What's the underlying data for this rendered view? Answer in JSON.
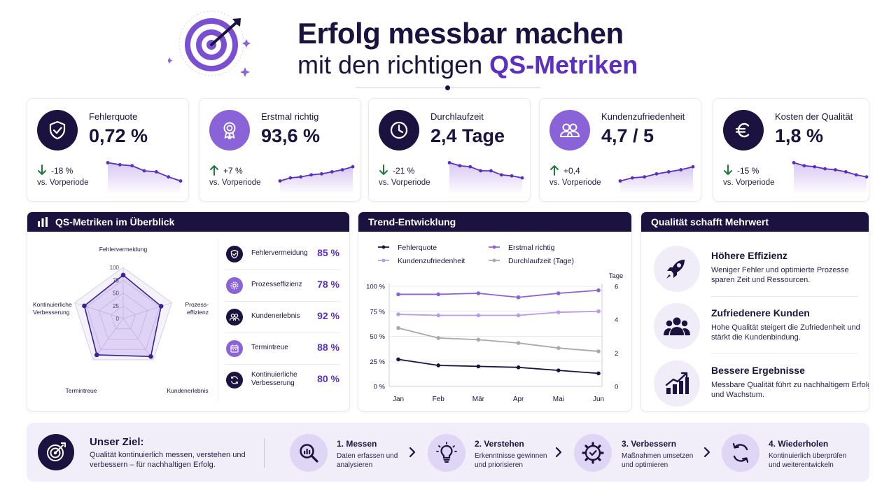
{
  "header": {
    "title": "Erfolg messbar machen",
    "subtitle_prefix": "mit den richtigen",
    "subtitle_highlight": "QS-Metriken"
  },
  "colors": {
    "dark": "#1c1240",
    "accent": "#5b2fc0",
    "accent_light": "#8b63d9",
    "lavender": "#b99be8",
    "gray": "#a8a8ae",
    "up_green": "#1f7a3d"
  },
  "kpis": [
    {
      "label": "Fehlerquote",
      "value": "0,72 %",
      "change": "-18 %",
      "sub": "vs. Vorperiode",
      "icon": "shield-check-icon",
      "direction": "down",
      "trend": [
        88,
        86,
        85,
        80,
        79,
        74,
        70
      ]
    },
    {
      "label": "Erstmal richtig",
      "value": "93,6 %",
      "change": "+7 %",
      "sub": "vs. Vorperiode",
      "icon": "award-ribbon-icon",
      "direction": "up",
      "trend": [
        70,
        73,
        74,
        76,
        77,
        79,
        81,
        84
      ]
    },
    {
      "label": "Durchlaufzeit",
      "value": "2,4 Tage",
      "change": "-21 %",
      "sub": "vs. Vorperiode",
      "icon": "clock-icon",
      "direction": "down",
      "trend": [
        88,
        85,
        84,
        80,
        80,
        76,
        75,
        73
      ]
    },
    {
      "label": "Kundenzufriedenheit",
      "value": "4,7 / 5",
      "change": "+0,4",
      "sub": "vs. Vorperiode",
      "icon": "users-icon",
      "direction": "up",
      "trend": [
        70,
        73,
        74,
        77,
        79,
        81,
        84
      ]
    },
    {
      "label": "Kosten der Qualität",
      "value": "1,8 %",
      "change": "-15 %",
      "sub": "vs. Vorperiode",
      "icon": "euro-icon",
      "direction": "down",
      "trend": [
        88,
        85,
        84,
        82,
        81,
        79,
        76,
        74
      ]
    }
  ],
  "overview": {
    "title": "QS-Metriken im Überblick",
    "radar_ticks": [
      "100",
      "75",
      "50",
      "25",
      "0"
    ],
    "radar_labels": [
      "Fehlervermeidung",
      "Prozess-\neffizienz",
      "Kundenerlebnis",
      "Termintreue",
      "Kontinuierliche\nVerbesserung"
    ],
    "metrics": [
      {
        "label": "Fehlervermeidung",
        "value": "85 %",
        "icon": "shield-check-icon"
      },
      {
        "label": "Prozesseffizienz",
        "value": "78 %",
        "icon": "gear-icon"
      },
      {
        "label": "Kundenerlebnis",
        "value": "92 %",
        "icon": "users-icon"
      },
      {
        "label": "Termintreue",
        "value": "88 %",
        "icon": "calendar-icon"
      },
      {
        "label": "Kontinuierliche\nVerbesserung",
        "value": "80 %",
        "icon": "cycle-icon"
      }
    ]
  },
  "trend": {
    "title": "Trend-Entwicklung",
    "legend": [
      "Fehlerquote",
      "Erstmal richtig",
      "Kundenzufriedenheit",
      "Durchlaufzeit (Tage)"
    ],
    "right_axis_title": "Tage"
  },
  "value_panel": {
    "title": "Qualität schafft Mehrwert",
    "items": [
      {
        "title": "Höhere Effizienz",
        "desc": "Weniger Fehler und optimierte Prozesse sparen Zeit und Ressourcen.",
        "icon": "rocket-icon"
      },
      {
        "title": "Zufriedenere Kunden",
        "desc": "Hohe Qualität steigert die Zufriedenheit und stärkt die Kundenbindung.",
        "icon": "users-icon"
      },
      {
        "title": "Bessere Ergebnisse",
        "desc": "Messbare Qualität führt zu nachhaltigem Erfolg und Wachstum.",
        "icon": "growth-chart-icon"
      }
    ]
  },
  "goal": {
    "title": "Unser Ziel:",
    "desc": "Qualität kontinuierlich messen, verstehen und verbessern – für nachhaltigen Erfolg."
  },
  "steps": [
    {
      "title": "1. Messen",
      "desc": "Daten erfassen und analysieren",
      "icon": "magnifier-chart-icon"
    },
    {
      "title": "2. Verstehen",
      "desc": "Erkenntnisse gewinnen und priorisieren",
      "icon": "lightbulb-icon"
    },
    {
      "title": "3. Verbessern",
      "desc": "Maßnahmen umsetzen und optimieren",
      "icon": "gear-check-icon"
    },
    {
      "title": "4. Wiederholen",
      "desc": "Kontinuierlich überprüfen und weiterentwickeln",
      "icon": "cycle-icon"
    }
  ],
  "chart_data": [
    {
      "type": "radar",
      "categories": [
        "Fehlervermeidung",
        "Prozess-effizienz",
        "Kundenerlebnis",
        "Termintreue",
        "Kontinuierliche Verbesserung"
      ],
      "values": [
        85,
        78,
        92,
        88,
        80
      ],
      "rlim": [
        0,
        100
      ],
      "ticks": [
        0,
        25,
        50,
        75,
        100
      ]
    },
    {
      "type": "line",
      "x": [
        "Jan",
        "Feb",
        "Mär",
        "Apr",
        "Mai",
        "Jun"
      ],
      "ylim_left": [
        0,
        100
      ],
      "yticks_left": [
        "0 %",
        "25 %",
        "50 %",
        "75 %",
        "100 %"
      ],
      "ylim_right": [
        0,
        6
      ],
      "yticks_right": [
        "0",
        "2",
        "4",
        "6"
      ],
      "right_axis_title": "Tage",
      "legend_position": "top",
      "series": [
        {
          "name": "Fehlerquote",
          "axis": "left",
          "color": "#1c1240",
          "values": [
            27,
            21,
            20,
            19,
            16,
            13
          ]
        },
        {
          "name": "Erstmal richtig",
          "axis": "left",
          "color": "#8b63d9",
          "values": [
            92,
            92,
            93,
            89,
            93,
            96
          ]
        },
        {
          "name": "Kundenzufriedenheit",
          "axis": "left",
          "color": "#b99be8",
          "values": [
            72,
            71,
            71,
            71,
            74,
            75
          ]
        },
        {
          "name": "Durchlaufzeit (Tage)",
          "axis": "right",
          "color": "#a8a8ae",
          "values": [
            3.5,
            2.9,
            2.8,
            2.6,
            2.3,
            2.1
          ]
        }
      ]
    }
  ]
}
